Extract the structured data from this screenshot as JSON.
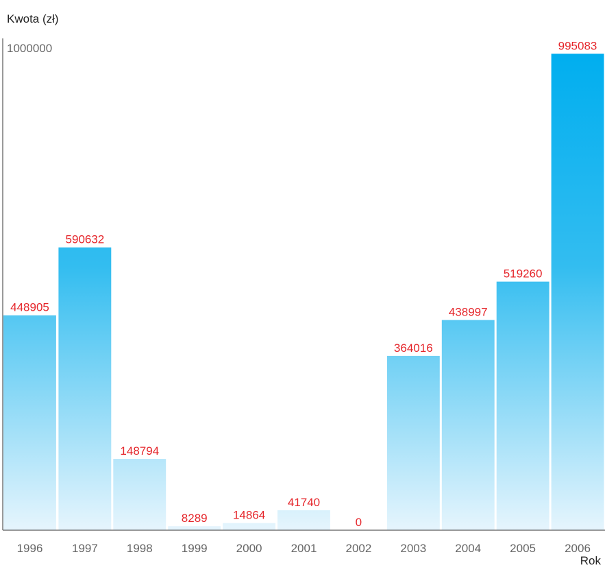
{
  "chart_data": {
    "type": "bar",
    "ylabel": "Kwota (zł)",
    "xlabel": "Rok",
    "ylim": [
      0,
      1000000
    ],
    "ymax_label": "1000000",
    "grid": false,
    "categories": [
      "1996",
      "1997",
      "1998",
      "1999",
      "2000",
      "2001",
      "2002",
      "2003",
      "2004",
      "2005",
      "2006"
    ],
    "values": [
      448905,
      590632,
      148794,
      8289,
      14864,
      41740,
      0,
      364016,
      438997,
      519260,
      995083
    ],
    "value_labels": [
      "448905",
      "590632",
      "148794",
      "8289",
      "14864",
      "41740",
      "0",
      "364016",
      "438997",
      "519260",
      "995083"
    ],
    "colors": {
      "bar_top": "#00aeef",
      "bar_bottom": "#e6f5fd",
      "value_label": "#e5252a",
      "axis": "#333333"
    }
  }
}
